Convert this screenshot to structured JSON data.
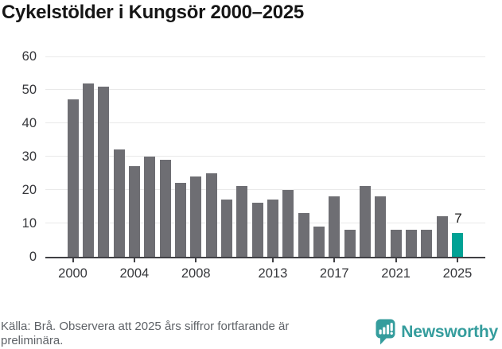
{
  "title": "Cykelstölder i Kungsör 2000–2025",
  "footer": {
    "source_lines": [
      "Källa: Brå. Observera att 2025 års siffror fortfarande är",
      "preliminära."
    ],
    "brand": "Newsworthy"
  },
  "colors": {
    "bar": "#6e6e73",
    "highlight": "#00a295",
    "grid": "#e9e9e9",
    "axis": "#404044",
    "tick_text": "#36373b",
    "title_text": "#161616",
    "value_text": "#1d1d1d",
    "footer_text": "#5f6368",
    "brand_teal": "#359d9d"
  },
  "chart_data": {
    "type": "bar",
    "title": "Cykelstölder i Kungsör 2000–2025",
    "xlabel": "",
    "ylabel": "",
    "categories": [
      2000,
      2001,
      2002,
      2003,
      2004,
      2005,
      2006,
      2007,
      2008,
      2009,
      2010,
      2011,
      2012,
      2013,
      2014,
      2015,
      2016,
      2017,
      2018,
      2019,
      2020,
      2021,
      2022,
      2023,
      2024,
      2025
    ],
    "values": [
      47,
      52,
      51,
      32,
      27,
      30,
      29,
      22,
      24,
      25,
      17,
      21,
      16,
      17,
      20,
      13,
      9,
      18,
      8,
      21,
      18,
      8,
      8,
      8,
      12,
      7
    ],
    "ylim": [
      0,
      60
    ],
    "y_ticks": [
      0,
      10,
      20,
      30,
      40,
      50,
      60
    ],
    "x_tick_labels": [
      "2000",
      "2004",
      "2008",
      "2013",
      "2017",
      "2021",
      "2025"
    ],
    "grid": "horizontal",
    "legend": null,
    "highlight_index": 25,
    "highlight_label": "7"
  }
}
